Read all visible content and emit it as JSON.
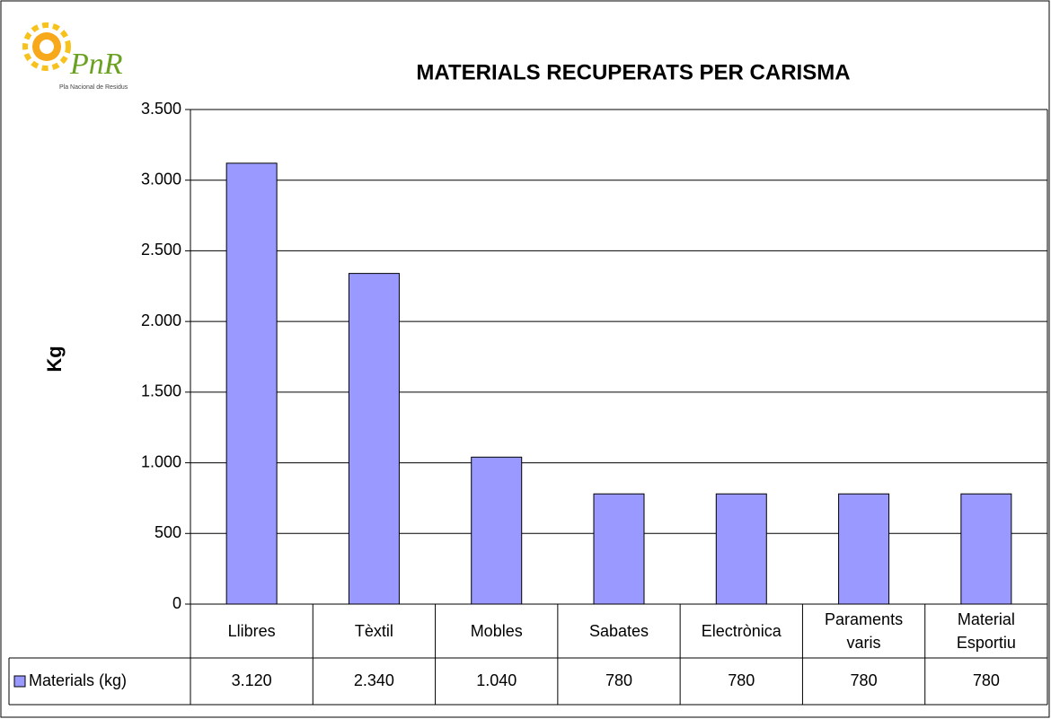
{
  "logo": {
    "text": "PnR",
    "subtitle": "Pla Nacional de Residus"
  },
  "chart_data": {
    "type": "bar",
    "title": "MATERIALS RECUPERATS PER CARISMA",
    "y_label": "Kg",
    "categories": [
      "Llibres",
      "Tèxtil",
      "Mobles",
      "Sabates",
      "Electrònica",
      "Paraments varis",
      "Material Esportiu"
    ],
    "series": [
      {
        "name": "Materials (kg)",
        "color": "#9999ff",
        "values": [
          3120,
          2340,
          1040,
          780,
          780,
          780,
          780
        ],
        "value_labels": [
          "3.120",
          "2.340",
          "1.040",
          "780",
          "780",
          "780",
          "780"
        ]
      }
    ],
    "ylim": [
      0,
      3500
    ],
    "yticks": [
      0,
      500,
      {
        "value": 1000,
        "label": "1.000"
      },
      {
        "value": 1500,
        "label": "1.500"
      },
      {
        "value": 2000,
        "label": "2.000"
      },
      {
        "value": 2500,
        "label": "2.500"
      },
      {
        "value": 3000,
        "label": "3.000"
      },
      {
        "value": 3500,
        "label": "3.500"
      }
    ],
    "grid": true,
    "data_table": true
  }
}
